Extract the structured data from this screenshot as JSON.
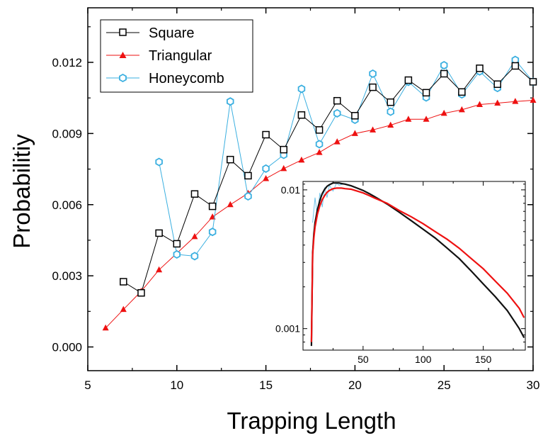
{
  "chart_data": [
    {
      "type": "line",
      "title": "",
      "xlabel": "Trapping Length",
      "ylabel": "Probabilitiy",
      "xlim": [
        5,
        30
      ],
      "ylim": [
        -0.001,
        0.0143
      ],
      "xticks": [
        5,
        10,
        15,
        20,
        25,
        30
      ],
      "xtick_labels": [
        "5",
        "10",
        "15",
        "20",
        "25",
        "30"
      ],
      "yticks": [
        0.0,
        0.003,
        0.006,
        0.009,
        0.012
      ],
      "ytick_labels": [
        "0.000",
        "0.003",
        "0.006",
        "0.009",
        "0.012"
      ],
      "grid": false,
      "legend_position": "top-left",
      "series": [
        {
          "name": "Square",
          "color": "#000000",
          "marker": "open-square",
          "x": [
            7,
            8,
            9,
            10,
            11,
            12,
            13,
            14,
            15,
            16,
            17,
            18,
            19,
            20,
            21,
            22,
            23,
            24,
            25,
            26,
            27,
            28,
            29,
            30
          ],
          "values": [
            0.00275,
            0.00228,
            0.0048,
            0.00435,
            0.00645,
            0.00593,
            0.0079,
            0.00722,
            0.00895,
            0.00832,
            0.00978,
            0.00915,
            0.01038,
            0.00975,
            0.01095,
            0.01032,
            0.01125,
            0.01072,
            0.01152,
            0.01075,
            0.01175,
            0.01108,
            0.01185,
            0.01118
          ]
        },
        {
          "name": "Triangular",
          "color": "#ee1111",
          "marker": "filled-triangle",
          "x": [
            6,
            7,
            8,
            9,
            10,
            11,
            12,
            13,
            14,
            15,
            16,
            17,
            18,
            19,
            20,
            21,
            22,
            23,
            24,
            25,
            26,
            27,
            28,
            29,
            30
          ],
          "values": [
            0.0008,
            0.00158,
            0.00235,
            0.00325,
            0.00395,
            0.00465,
            0.00548,
            0.006,
            0.00648,
            0.0071,
            0.00752,
            0.00788,
            0.0082,
            0.00865,
            0.009,
            0.00915,
            0.00935,
            0.0096,
            0.0096,
            0.00985,
            0.01,
            0.01022,
            0.01028,
            0.01035,
            0.0104
          ]
        },
        {
          "name": "Honeycomb",
          "color": "#3aafe0",
          "marker": "open-hexagon",
          "x": [
            9,
            10,
            11,
            12,
            13,
            14,
            15,
            16,
            17,
            18,
            19,
            20,
            21,
            22,
            23,
            24,
            25,
            26,
            27,
            28,
            29,
            30
          ],
          "values": [
            0.0078,
            0.0039,
            0.00383,
            0.00485,
            0.01035,
            0.00635,
            0.00752,
            0.0081,
            0.01088,
            0.00855,
            0.00985,
            0.00958,
            0.01152,
            0.00992,
            0.01118,
            0.01052,
            0.01188,
            0.01065,
            0.01162,
            0.01092,
            0.0121,
            0.01118
          ]
        }
      ]
    },
    {
      "type": "line",
      "title": "",
      "xlabel": "",
      "ylabel": "",
      "xlim": [
        0,
        185
      ],
      "ylim": [
        0.0007,
        0.0115
      ],
      "y_scale": "log",
      "xticks": [
        50,
        100,
        150
      ],
      "xtick_labels": [
        "50",
        "100",
        "150"
      ],
      "yticks": [
        0.001,
        0.01
      ],
      "ytick_labels": [
        "0.001",
        "0.01"
      ],
      "grid": false,
      "position": "inset-bottom-right",
      "series": [
        {
          "name": "",
          "color": "#111111",
          "x": [
            7,
            8,
            9,
            10,
            12,
            14,
            16,
            18,
            20,
            22,
            25,
            28,
            30,
            32,
            35,
            40,
            45,
            50,
            55,
            60,
            70,
            80,
            90,
            100,
            110,
            120,
            130,
            140,
            150,
            160,
            170,
            180,
            184
          ],
          "values": [
            0.00075,
            0.0035,
            0.0048,
            0.0058,
            0.0072,
            0.0084,
            0.0094,
            0.0101,
            0.0106,
            0.0109,
            0.0112,
            0.0112,
            0.0112,
            0.0111,
            0.011,
            0.0107,
            0.0103,
            0.0099,
            0.0094,
            0.0089,
            0.0079,
            0.0069,
            0.006,
            0.0052,
            0.0045,
            0.0038,
            0.0032,
            0.0026,
            0.0021,
            0.0017,
            0.00135,
            0.001,
            0.00086
          ]
        },
        {
          "name": "",
          "color": "#ee1111",
          "x": [
            7,
            8,
            9,
            10,
            12,
            14,
            16,
            18,
            20,
            22,
            25,
            28,
            30,
            32,
            35,
            40,
            45,
            50,
            55,
            60,
            70,
            80,
            90,
            100,
            110,
            120,
            130,
            140,
            150,
            160,
            170,
            180,
            184
          ],
          "values": [
            0.0008,
            0.0034,
            0.0045,
            0.0054,
            0.0067,
            0.0077,
            0.0085,
            0.0091,
            0.0096,
            0.0099,
            0.0102,
            0.0103,
            0.0103,
            0.0103,
            0.0102,
            0.0101,
            0.0098,
            0.0095,
            0.0091,
            0.0087,
            0.008,
            0.0071,
            0.0064,
            0.0057,
            0.005,
            0.0044,
            0.0038,
            0.0032,
            0.0027,
            0.0022,
            0.0018,
            0.0014,
            0.0012
          ]
        },
        {
          "name": "",
          "color": "#6fc3ea",
          "x": [
            8,
            10,
            12,
            14,
            16,
            18,
            20,
            22,
            25,
            28,
            30,
            35,
            40
          ],
          "values": [
            0.0058,
            0.0088,
            0.0064,
            0.0095,
            0.0075,
            0.0104,
            0.0088,
            0.0108,
            0.0098,
            0.0112,
            0.0108,
            0.0111,
            0.0107
          ]
        }
      ]
    }
  ],
  "icons": {
    "square": "open-square-marker",
    "triangular": "filled-triangle-marker",
    "honeycomb": "open-hexagon-marker"
  }
}
